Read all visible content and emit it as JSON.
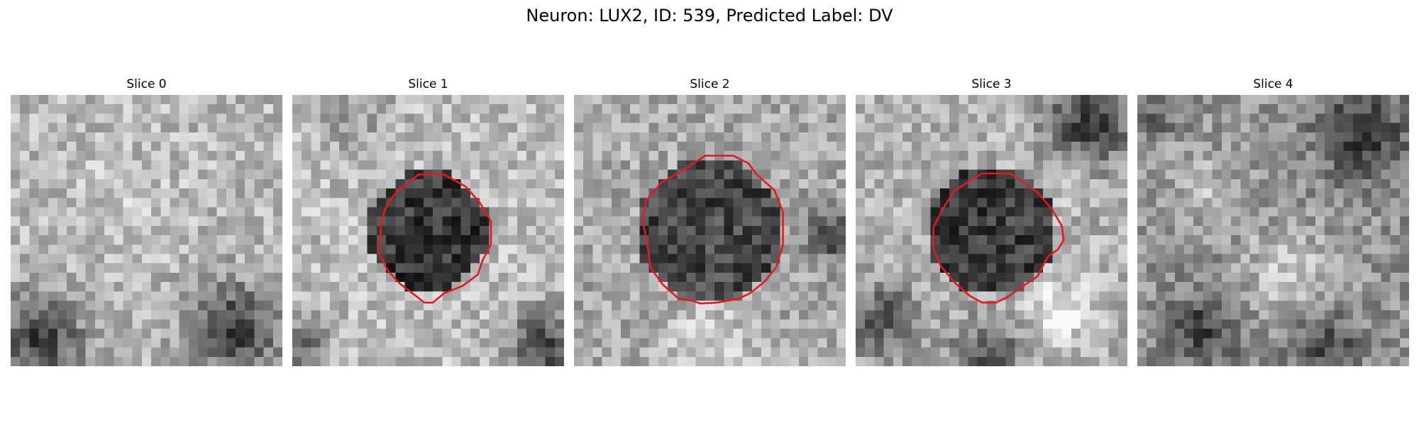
{
  "figure": {
    "title": "Neuron: LUX2, ID: 539, Predicted Label: DV"
  },
  "slices": [
    {
      "title": "Slice 0",
      "has_outline": false
    },
    {
      "title": "Slice 1",
      "has_outline": true
    },
    {
      "title": "Slice 2",
      "has_outline": true
    },
    {
      "title": "Slice 3",
      "has_outline": true
    },
    {
      "title": "Slice 4",
      "has_outline": false
    }
  ],
  "colors": {
    "outline": "#e41a1c",
    "colormap": "grayscale"
  }
}
